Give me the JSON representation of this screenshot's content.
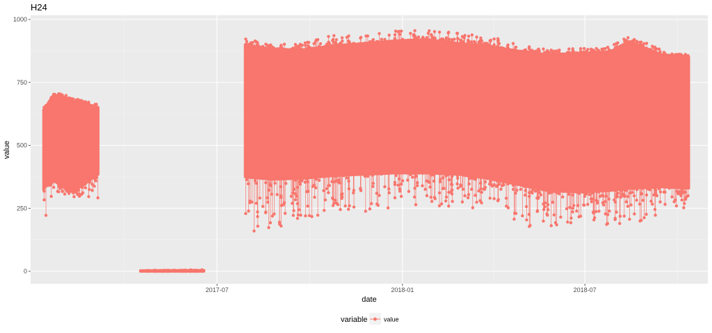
{
  "chart_data": {
    "type": "line",
    "title": "H24",
    "xlabel": "date",
    "ylabel": "value",
    "ylim": [
      0,
      1000
    ],
    "y_ticks": [
      0,
      250,
      500,
      750,
      1000
    ],
    "y_tick_labels": [
      "0",
      "250",
      "500",
      "750",
      "1000"
    ],
    "xlim": [
      "2016-12-28",
      "2018-10-31"
    ],
    "x_ticks": [
      "2017-07-01",
      "2018-01-01",
      "2018-07-01"
    ],
    "x_tick_labels": [
      "2017-07",
      "2018-01",
      "2018-07"
    ],
    "grid": true,
    "legend": {
      "title": "variable",
      "position": "bottom"
    },
    "series": [
      {
        "name": "value",
        "color": "#F8766D",
        "markers": true,
        "segments": [
          {
            "start": "2017-01-10",
            "end": "2017-03-05",
            "envelope": [
              {
                "x": "2017-01-10",
                "low": 330,
                "high": 640,
                "min": 170,
                "max": 655
              },
              {
                "x": "2017-01-20",
                "low": 360,
                "high": 700,
                "min": 320,
                "max": 710
              },
              {
                "x": "2017-01-31",
                "low": 330,
                "high": 690,
                "min": 290,
                "max": 700
              },
              {
                "x": "2017-02-10",
                "low": 320,
                "high": 675,
                "min": 275,
                "max": 685
              },
              {
                "x": "2017-02-20",
                "low": 350,
                "high": 665,
                "min": 300,
                "max": 675
              },
              {
                "x": "2017-03-05",
                "low": 385,
                "high": 650,
                "min": 255,
                "max": 665
              }
            ]
          },
          {
            "start": "2017-04-16",
            "end": "2017-06-18",
            "envelope": [
              {
                "x": "2017-04-16",
                "low": 0,
                "high": 2,
                "min": 0,
                "max": 3
              },
              {
                "x": "2017-06-18",
                "low": 0,
                "high": 3,
                "min": 0,
                "max": 6
              }
            ]
          },
          {
            "start": "2017-07-29",
            "end": "2018-10-12",
            "envelope": [
              {
                "x": "2017-07-29",
                "low": 375,
                "high": 900,
                "min": 160,
                "max": 925
              },
              {
                "x": "2017-08-25",
                "low": 365,
                "high": 880,
                "min": 160,
                "max": 900
              },
              {
                "x": "2017-09-25",
                "low": 370,
                "high": 880,
                "min": 205,
                "max": 905
              },
              {
                "x": "2017-10-25",
                "low": 380,
                "high": 895,
                "min": 240,
                "max": 945
              },
              {
                "x": "2017-11-25",
                "low": 385,
                "high": 905,
                "min": 230,
                "max": 940
              },
              {
                "x": "2017-12-25",
                "low": 390,
                "high": 915,
                "min": 250,
                "max": 955
              },
              {
                "x": "2018-01-25",
                "low": 390,
                "high": 920,
                "min": 265,
                "max": 960
              },
              {
                "x": "2018-02-25",
                "low": 385,
                "high": 905,
                "min": 250,
                "max": 945
              },
              {
                "x": "2018-03-25",
                "low": 370,
                "high": 895,
                "min": 245,
                "max": 935
              },
              {
                "x": "2018-04-25",
                "low": 345,
                "high": 875,
                "min": 190,
                "max": 905
              },
              {
                "x": "2018-05-25",
                "low": 320,
                "high": 860,
                "min": 155,
                "max": 880
              },
              {
                "x": "2018-06-25",
                "low": 315,
                "high": 865,
                "min": 190,
                "max": 885
              },
              {
                "x": "2018-07-25",
                "low": 320,
                "high": 870,
                "min": 170,
                "max": 890
              },
              {
                "x": "2018-08-15",
                "low": 330,
                "high": 910,
                "min": 195,
                "max": 940
              },
              {
                "x": "2018-09-15",
                "low": 335,
                "high": 860,
                "min": 200,
                "max": 880
              },
              {
                "x": "2018-10-12",
                "low": 330,
                "high": 850,
                "min": 260,
                "max": 860
              }
            ]
          }
        ]
      }
    ]
  }
}
